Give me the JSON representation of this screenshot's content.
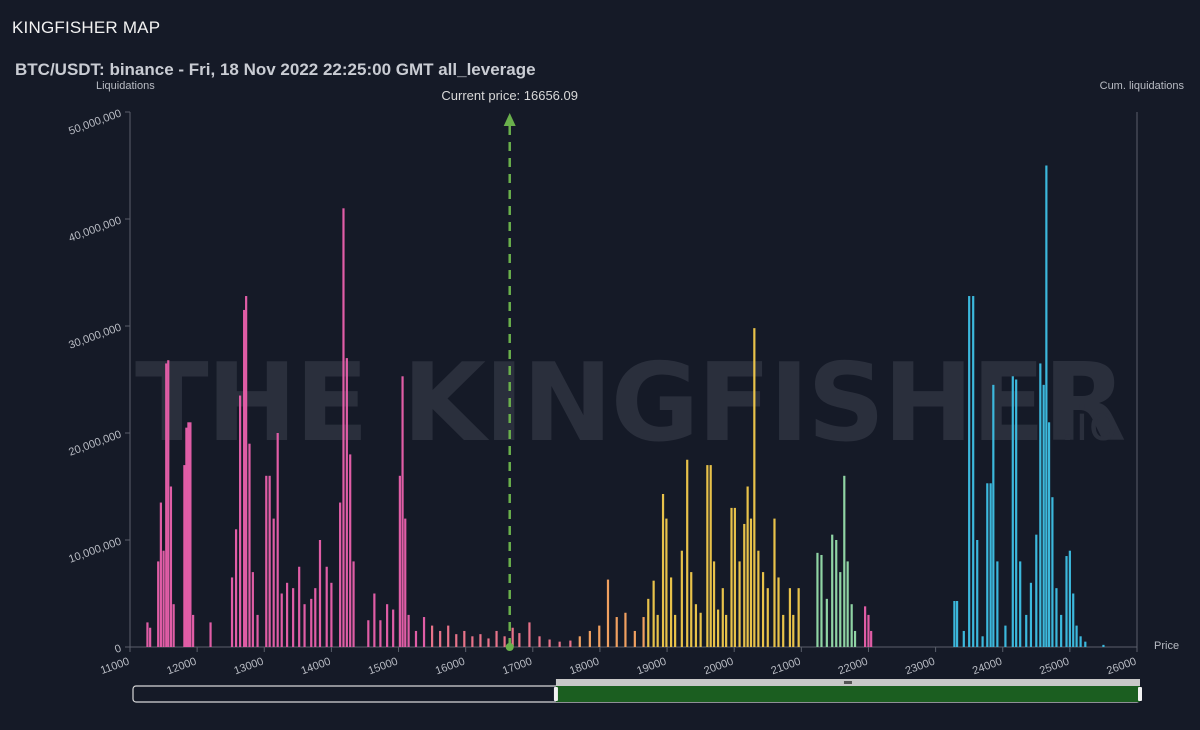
{
  "app": {
    "title": "KINGFISHER MAP"
  },
  "chart_data": {
    "type": "bar",
    "title": "BTC/USDT: binance - Fri, 18 Nov 2022 22:25:00 GMT all_leverage",
    "ylabel": "Liquidations",
    "y2label": "Cum. liquidations",
    "xlabel": "Price",
    "xlim": [
      11000,
      26000
    ],
    "ylim": [
      0,
      50000000
    ],
    "x_ticks": [
      "11000",
      "12000",
      "13000",
      "14000",
      "15000",
      "16000",
      "17000",
      "18000",
      "19000",
      "20000",
      "21000",
      "22000",
      "23000",
      "24000",
      "25000",
      "26000"
    ],
    "y_ticks": [
      "0",
      "10,000,000",
      "20,000,000",
      "30,000,000",
      "40,000,000",
      "50,000,000"
    ],
    "current_price": {
      "value": 16656.09,
      "label": "Current price: 16656.09",
      "color": "#6ab04c"
    },
    "watermark": "THE KINGFISHER",
    "watermark_suffix": ".io",
    "colors": {
      "pink": "#e05da6",
      "salmon": "#e8738a",
      "orange": "#f0a060",
      "yellow": "#e8c24a",
      "green": "#8fd4a4",
      "cyan": "#3cb8dc",
      "axis": "#5a5f6b",
      "navigator_fill": "#1b5e20"
    },
    "series": [
      {
        "color": "#e05da6",
        "points": [
          [
            11260,
            2300000
          ],
          [
            11300,
            1800000
          ],
          [
            11420,
            8000000
          ],
          [
            11460,
            13500000
          ],
          [
            11500,
            9000000
          ],
          [
            11540,
            26500000
          ],
          [
            11570,
            26800000
          ],
          [
            11610,
            15000000
          ],
          [
            11650,
            4000000
          ],
          [
            11810,
            17000000
          ],
          [
            11840,
            20500000
          ],
          [
            11870,
            21000000
          ],
          [
            11900,
            21000000
          ],
          [
            11940,
            3000000
          ],
          [
            12200,
            2300000
          ],
          [
            12520,
            6500000
          ],
          [
            12580,
            11000000
          ],
          [
            12640,
            23500000
          ],
          [
            12700,
            31500000
          ],
          [
            12730,
            32800000
          ],
          [
            12780,
            19000000
          ],
          [
            12830,
            7000000
          ],
          [
            12900,
            3000000
          ],
          [
            13030,
            16000000
          ],
          [
            13080,
            16000000
          ],
          [
            13140,
            12000000
          ],
          [
            13200,
            20000000
          ],
          [
            13260,
            5000000
          ],
          [
            13340,
            6000000
          ],
          [
            13430,
            5500000
          ],
          [
            13520,
            7500000
          ],
          [
            13600,
            4000000
          ],
          [
            13700,
            4500000
          ],
          [
            13760,
            5500000
          ],
          [
            13830,
            10000000
          ],
          [
            13930,
            7500000
          ],
          [
            14000,
            6000000
          ],
          [
            14130,
            13500000
          ],
          [
            14180,
            41000000
          ],
          [
            14230,
            27000000
          ],
          [
            14280,
            18000000
          ],
          [
            14330,
            8000000
          ],
          [
            14550,
            2500000
          ],
          [
            14640,
            5000000
          ],
          [
            14730,
            2500000
          ],
          [
            14830,
            4000000
          ],
          [
            14920,
            3500000
          ],
          [
            15020,
            16000000
          ],
          [
            15060,
            25300000
          ],
          [
            15100,
            12000000
          ],
          [
            15150,
            3000000
          ],
          [
            15260,
            1500000
          ],
          [
            15380,
            2800000
          ]
        ]
      },
      {
        "color": "#e8738a",
        "points": [
          [
            15500,
            2000000
          ],
          [
            15620,
            1500000
          ],
          [
            15740,
            2000000
          ],
          [
            15860,
            1200000
          ],
          [
            15980,
            1500000
          ],
          [
            16100,
            1000000
          ],
          [
            16220,
            1200000
          ],
          [
            16340,
            800000
          ],
          [
            16460,
            1500000
          ],
          [
            16580,
            1000000
          ],
          [
            16700,
            1800000
          ],
          [
            16800,
            1300000
          ],
          [
            16950,
            2300000
          ],
          [
            17100,
            1000000
          ],
          [
            17250,
            700000
          ],
          [
            17400,
            500000
          ],
          [
            17560,
            600000
          ]
        ]
      },
      {
        "color": "#f0a060",
        "points": [
          [
            17700,
            1000000
          ],
          [
            17850,
            1500000
          ],
          [
            17990,
            2000000
          ],
          [
            18120,
            6300000
          ],
          [
            18250,
            2800000
          ],
          [
            18380,
            3200000
          ],
          [
            18520,
            1500000
          ],
          [
            18650,
            2800000
          ]
        ]
      },
      {
        "color": "#e8c24a",
        "points": [
          [
            18720,
            4500000
          ],
          [
            18800,
            6200000
          ],
          [
            18860,
            3000000
          ],
          [
            18940,
            14300000
          ],
          [
            18990,
            12000000
          ],
          [
            19060,
            6500000
          ],
          [
            19120,
            3000000
          ],
          [
            19220,
            9000000
          ],
          [
            19300,
            17500000
          ],
          [
            19360,
            7000000
          ],
          [
            19430,
            4000000
          ],
          [
            19500,
            3200000
          ],
          [
            19600,
            17000000
          ],
          [
            19650,
            17000000
          ],
          [
            19700,
            8000000
          ],
          [
            19760,
            3500000
          ],
          [
            19830,
            5500000
          ],
          [
            19880,
            3000000
          ],
          [
            19960,
            13000000
          ],
          [
            20010,
            13000000
          ],
          [
            20080,
            8000000
          ],
          [
            20150,
            11500000
          ],
          [
            20200,
            15000000
          ],
          [
            20250,
            12000000
          ],
          [
            20300,
            29800000
          ],
          [
            20360,
            9000000
          ],
          [
            20430,
            7000000
          ],
          [
            20500,
            5500000
          ],
          [
            20600,
            12000000
          ],
          [
            20660,
            6500000
          ],
          [
            20730,
            3000000
          ],
          [
            20830,
            5500000
          ],
          [
            20880,
            3000000
          ],
          [
            20960,
            5500000
          ]
        ]
      },
      {
        "color": "#8fd4a4",
        "points": [
          [
            21240,
            8800000
          ],
          [
            21300,
            8600000
          ],
          [
            21380,
            4500000
          ],
          [
            21460,
            10500000
          ],
          [
            21520,
            10000000
          ],
          [
            21580,
            7000000
          ],
          [
            21640,
            16000000
          ],
          [
            21690,
            8000000
          ],
          [
            21750,
            4000000
          ],
          [
            21800,
            1500000
          ]
        ]
      },
      {
        "color": "#e05da6",
        "points": [
          [
            21950,
            3800000
          ],
          [
            22000,
            3000000
          ],
          [
            22040,
            1500000
          ]
        ]
      },
      {
        "color": "#3cb8dc",
        "points": [
          [
            23280,
            4300000
          ],
          [
            23320,
            4300000
          ],
          [
            23420,
            1500000
          ],
          [
            23500,
            32800000
          ],
          [
            23560,
            32800000
          ],
          [
            23620,
            10000000
          ],
          [
            23700,
            1000000
          ],
          [
            23770,
            15300000
          ],
          [
            23820,
            15300000
          ],
          [
            23860,
            24500000
          ],
          [
            23920,
            8000000
          ],
          [
            24040,
            2000000
          ],
          [
            24150,
            25300000
          ],
          [
            24200,
            25000000
          ],
          [
            24260,
            8000000
          ],
          [
            24350,
            3000000
          ],
          [
            24420,
            6000000
          ],
          [
            24500,
            10500000
          ],
          [
            24560,
            26500000
          ],
          [
            24610,
            24500000
          ],
          [
            24650,
            45000000
          ],
          [
            24690,
            21000000
          ],
          [
            24740,
            14000000
          ],
          [
            24800,
            5500000
          ],
          [
            24870,
            3000000
          ],
          [
            24950,
            8500000
          ],
          [
            25000,
            9000000
          ],
          [
            25050,
            5000000
          ],
          [
            25100,
            2000000
          ],
          [
            25160,
            1000000
          ],
          [
            25230,
            500000
          ],
          [
            25500,
            200000
          ]
        ]
      }
    ],
    "navigator": {
      "range": [
        0.42,
        1.0
      ]
    }
  }
}
